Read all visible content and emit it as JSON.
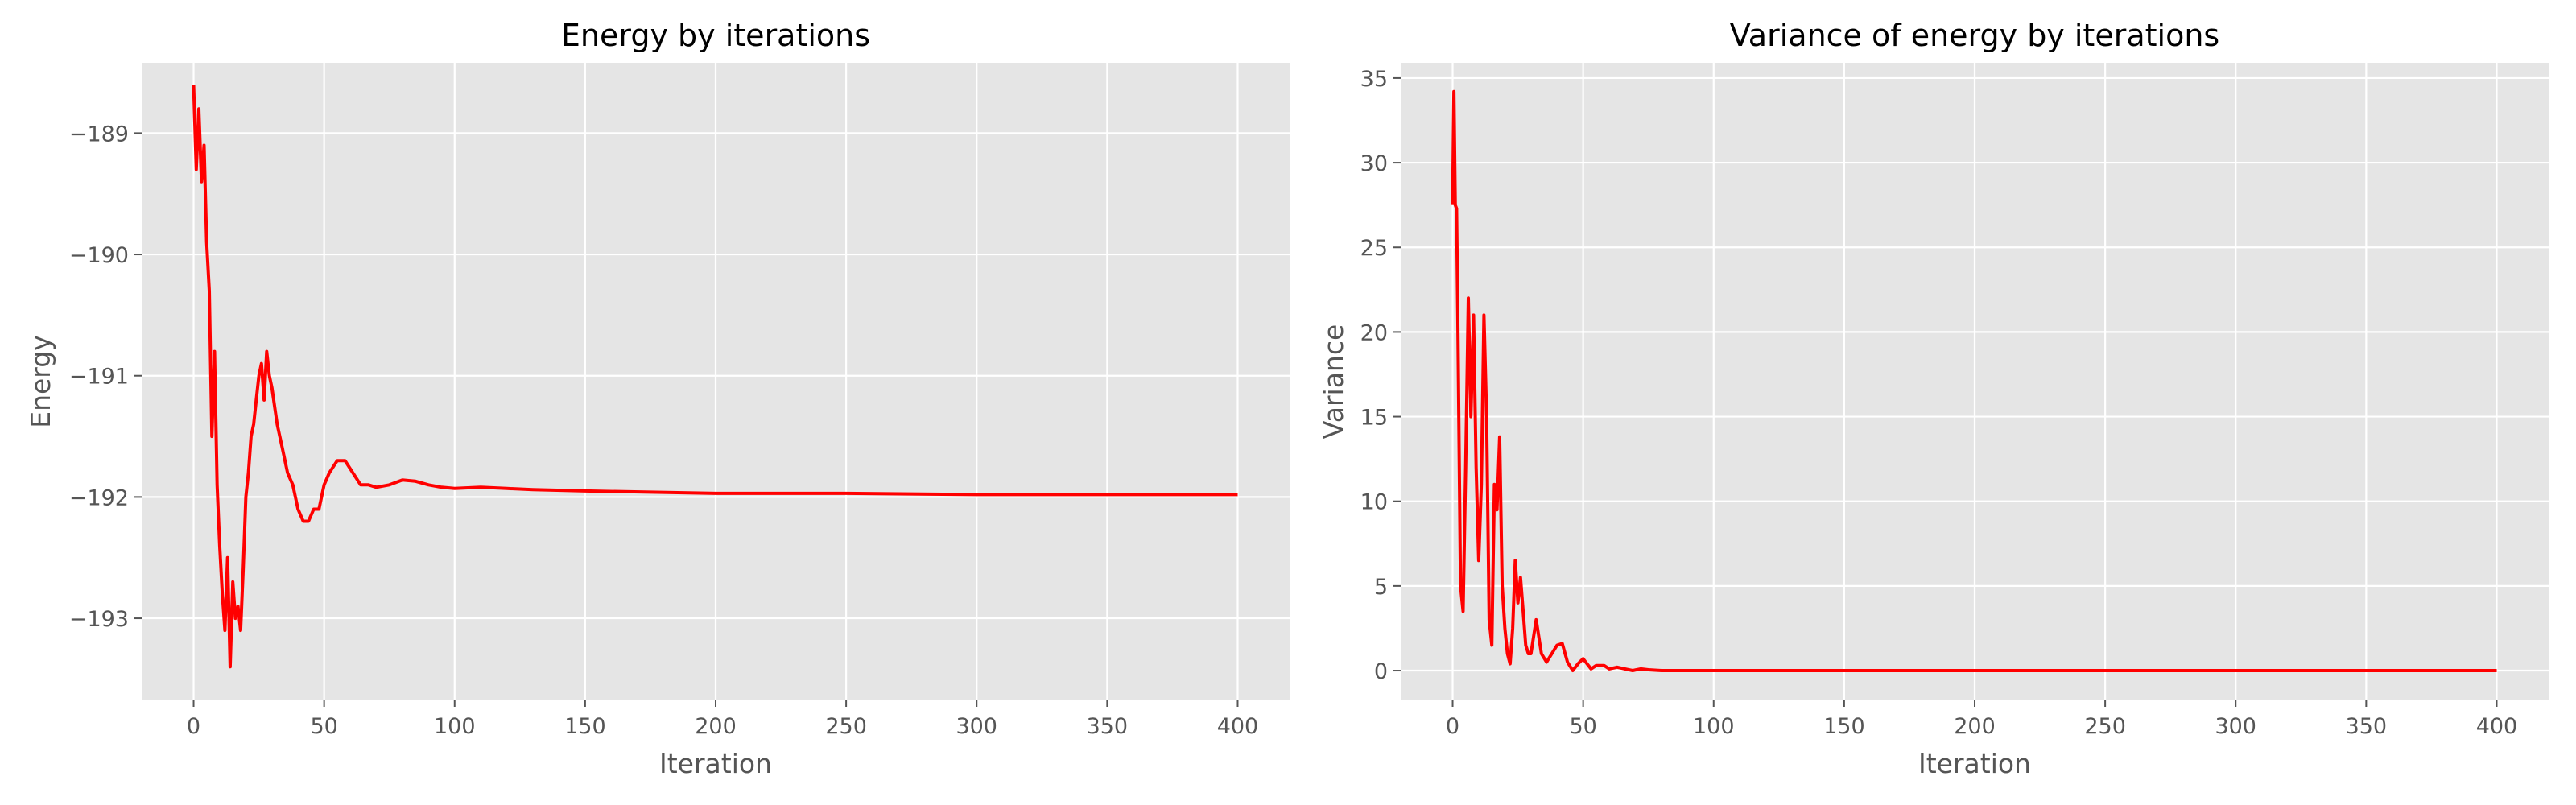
{
  "colors": {
    "background": "#e5e5e5",
    "grid": "#ffffff",
    "line": "#ff0000",
    "text": "#555555"
  },
  "chart_data": [
    {
      "type": "line",
      "title": "Energy by iterations",
      "xlabel": "Iteration",
      "ylabel": "Energy",
      "grid": true,
      "xlim": [
        -19.9,
        419.9
      ],
      "ylim": [
        -193.67,
        -188.42
      ],
      "xticks": [
        0,
        50,
        100,
        150,
        200,
        250,
        300,
        350,
        400
      ],
      "xtick_labels": [
        "0",
        "50",
        "100",
        "150",
        "200",
        "250",
        "300",
        "350",
        "400"
      ],
      "yticks": [
        -193,
        -192,
        -191,
        -190,
        -189
      ],
      "ytick_labels": [
        "−193",
        "−192",
        "−191",
        "−190",
        "−189"
      ],
      "series": [
        {
          "color": "#ff0000",
          "x": [
            0,
            1,
            2,
            3,
            4,
            5,
            6,
            7,
            8,
            9,
            10,
            11,
            12,
            13,
            14,
            15,
            16,
            17,
            18,
            19,
            20,
            21,
            22,
            23,
            24,
            25,
            26,
            27,
            28,
            29,
            30,
            32,
            34,
            36,
            38,
            40,
            42,
            44,
            46,
            48,
            50,
            52,
            55,
            58,
            61,
            64,
            67,
            70,
            75,
            80,
            85,
            90,
            95,
            100,
            110,
            120,
            130,
            150,
            175,
            200,
            250,
            300,
            350,
            400
          ],
          "y": [
            -188.6,
            -189.3,
            -188.8,
            -189.4,
            -189.1,
            -189.9,
            -190.3,
            -191.5,
            -190.8,
            -191.9,
            -192.4,
            -192.8,
            -193.1,
            -192.5,
            -193.4,
            -192.7,
            -193.0,
            -192.9,
            -193.1,
            -192.6,
            -192.0,
            -191.8,
            -191.5,
            -191.4,
            -191.2,
            -191.0,
            -190.9,
            -191.2,
            -190.8,
            -191.0,
            -191.1,
            -191.4,
            -191.6,
            -191.8,
            -191.9,
            -192.1,
            -192.2,
            -192.2,
            -192.1,
            -192.1,
            -191.9,
            -191.8,
            -191.7,
            -191.7,
            -191.8,
            -191.9,
            -191.9,
            -191.92,
            -191.9,
            -191.86,
            -191.87,
            -191.9,
            -191.92,
            -191.93,
            -191.92,
            -191.93,
            -191.94,
            -191.95,
            -191.96,
            -191.97,
            -191.97,
            -191.98,
            -191.98,
            -191.98
          ]
        }
      ]
    },
    {
      "type": "line",
      "title": "Variance of energy by iterations",
      "xlabel": "Iteration",
      "ylabel": "Variance",
      "grid": true,
      "xlim": [
        -19.9,
        419.9
      ],
      "ylim": [
        -1.71,
        35.9
      ],
      "xticks": [
        0,
        50,
        100,
        150,
        200,
        250,
        300,
        350,
        400
      ],
      "xtick_labels": [
        "0",
        "50",
        "100",
        "150",
        "200",
        "250",
        "300",
        "350",
        "400"
      ],
      "yticks": [
        0,
        5,
        10,
        15,
        20,
        25,
        30,
        35
      ],
      "ytick_labels": [
        "0",
        "5",
        "10",
        "15",
        "20",
        "25",
        "30",
        "35"
      ],
      "series": [
        {
          "color": "#ff0000",
          "x": [
            0,
            0.5,
            1,
            1.5,
            2,
            3,
            4,
            5,
            6,
            7,
            8,
            9,
            10,
            11,
            12,
            13,
            14,
            15,
            16,
            17,
            18,
            19,
            20,
            21,
            22,
            23,
            24,
            25,
            26,
            27,
            28,
            29,
            30,
            32,
            34,
            36,
            38,
            40,
            42,
            44,
            46,
            48,
            50,
            53,
            55,
            58,
            60,
            63,
            66,
            69,
            72,
            75,
            80,
            90,
            100,
            150,
            200,
            250,
            300,
            350,
            400
          ],
          "y": [
            27.5,
            34.2,
            27.5,
            27.3,
            20.5,
            5.0,
            3.5,
            12.0,
            22.0,
            15.0,
            21.0,
            12.0,
            6.5,
            11.0,
            21.0,
            15.0,
            3.0,
            1.5,
            11.0,
            9.5,
            13.8,
            5.0,
            2.5,
            1.0,
            0.4,
            2.5,
            6.5,
            4.0,
            5.5,
            3.5,
            1.5,
            1.0,
            1.0,
            3.0,
            1.0,
            0.5,
            1.0,
            1.5,
            1.6,
            0.5,
            0.0,
            0.4,
            0.7,
            0.1,
            0.3,
            0.3,
            0.1,
            0.2,
            0.1,
            0.0,
            0.1,
            0.05,
            0.0,
            0.0,
            0.0,
            0.0,
            0.0,
            0.0,
            0.0,
            0.0,
            0.0
          ]
        }
      ]
    }
  ]
}
